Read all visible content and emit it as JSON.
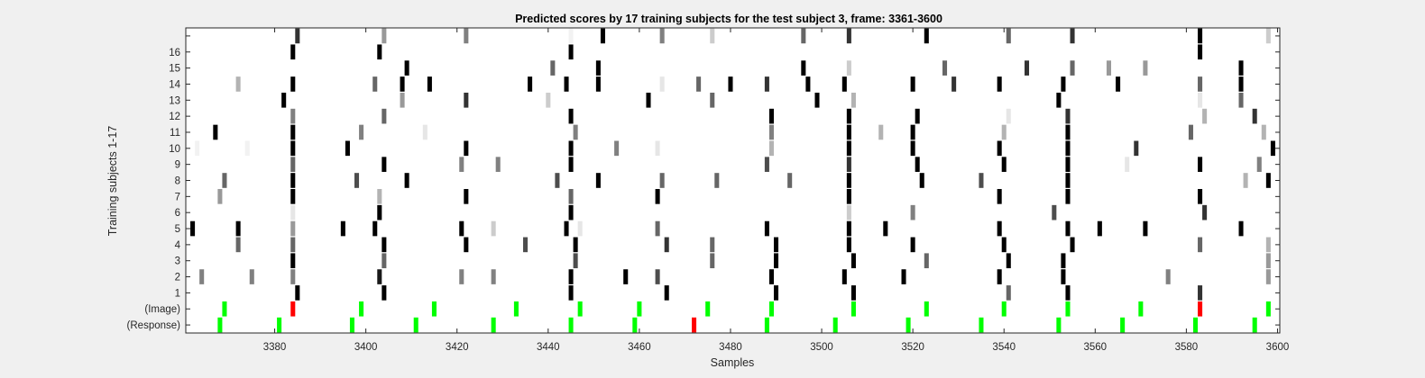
{
  "chart_data": {
    "type": "heatmap",
    "title": "Predicted scores by 17 training subjects for the test subject 3, frame: 3361-3600",
    "xlabel": "Samples",
    "ylabel": "Training subjects 1-17",
    "xlim": [
      3361,
      3600
    ],
    "x_ticks": [
      3380,
      3400,
      3420,
      3440,
      3460,
      3480,
      3500,
      3520,
      3540,
      3560,
      3580,
      3600
    ],
    "row_labels": [
      "(Response)",
      "(Image)",
      "1",
      "2",
      "3",
      "4",
      "5",
      "6",
      "7",
      "8",
      "9",
      "10",
      "11",
      "12",
      "13",
      "14",
      "15",
      "16",
      ""
    ],
    "colormap": "gray-reversed",
    "marker_colors": {
      "match": "#00ff00",
      "mismatch": "#ff0000"
    },
    "rows": [
      {
        "row": "(Response)",
        "cells": [
          [
            3368,
            "g"
          ],
          [
            3381,
            "g"
          ],
          [
            3397,
            "g"
          ],
          [
            3411,
            "g"
          ],
          [
            3428,
            "g"
          ],
          [
            3445,
            "g"
          ],
          [
            3459,
            "g"
          ],
          [
            3472,
            "r"
          ],
          [
            3488,
            "g"
          ],
          [
            3503,
            "g"
          ],
          [
            3519,
            "g"
          ],
          [
            3535,
            "g"
          ],
          [
            3552,
            "g"
          ],
          [
            3566,
            "g"
          ],
          [
            3582,
            "g"
          ],
          [
            3595,
            "g"
          ]
        ]
      },
      {
        "row": "(Image)",
        "cells": [
          [
            3369,
            "g"
          ],
          [
            3384,
            "r"
          ],
          [
            3399,
            "g"
          ],
          [
            3415,
            "g"
          ],
          [
            3433,
            "g"
          ],
          [
            3447,
            "g"
          ],
          [
            3460,
            "g"
          ],
          [
            3475,
            "g"
          ],
          [
            3489,
            "g"
          ],
          [
            3507,
            "g"
          ],
          [
            3523,
            "g"
          ],
          [
            3540,
            "g"
          ],
          [
            3554,
            "g"
          ],
          [
            3570,
            "g"
          ],
          [
            3583,
            "r"
          ],
          [
            3598,
            "g"
          ]
        ]
      },
      {
        "row": "1",
        "cells": [
          [
            3385,
            1.0
          ],
          [
            3404,
            1.0
          ],
          [
            3445,
            1.0
          ],
          [
            3466,
            1.0
          ],
          [
            3490,
            1.0
          ],
          [
            3507,
            1.0
          ],
          [
            3541,
            0.6
          ],
          [
            3554,
            1.0
          ],
          [
            3583,
            0.8
          ]
        ]
      },
      {
        "row": "2",
        "cells": [
          [
            3364,
            0.5
          ],
          [
            3375,
            0.5
          ],
          [
            3384,
            0.5
          ],
          [
            3403,
            0.9
          ],
          [
            3421,
            0.5
          ],
          [
            3428,
            0.5
          ],
          [
            3445,
            1.0
          ],
          [
            3457,
            1.0
          ],
          [
            3464,
            0.7
          ],
          [
            3489,
            1.0
          ],
          [
            3505,
            1.0
          ],
          [
            3518,
            1.0
          ],
          [
            3539,
            1.0
          ],
          [
            3553,
            1.0
          ],
          [
            3576,
            0.5
          ],
          [
            3598,
            0.4
          ]
        ]
      },
      {
        "row": "3",
        "cells": [
          [
            3384,
            1.0
          ],
          [
            3404,
            0.6
          ],
          [
            3446,
            0.7
          ],
          [
            3476,
            0.6
          ],
          [
            3490,
            1.0
          ],
          [
            3507,
            1.0
          ],
          [
            3523,
            0.6
          ],
          [
            3541,
            1.0
          ],
          [
            3553,
            1.0
          ],
          [
            3598,
            0.4
          ]
        ]
      },
      {
        "row": "4",
        "cells": [
          [
            3372,
            0.6
          ],
          [
            3384,
            0.6
          ],
          [
            3404,
            1.0
          ],
          [
            3422,
            1.0
          ],
          [
            3435,
            0.7
          ],
          [
            3446,
            1.0
          ],
          [
            3466,
            0.8
          ],
          [
            3476,
            0.6
          ],
          [
            3490,
            1.0
          ],
          [
            3506,
            1.0
          ],
          [
            3520,
            1.0
          ],
          [
            3540,
            1.0
          ],
          [
            3555,
            1.0
          ],
          [
            3583,
            0.6
          ],
          [
            3598,
            0.3
          ]
        ]
      },
      {
        "row": "5",
        "cells": [
          [
            3362,
            1.0
          ],
          [
            3372,
            1.0
          ],
          [
            3384,
            0.4
          ],
          [
            3395,
            1.0
          ],
          [
            3402,
            1.0
          ],
          [
            3421,
            1.0
          ],
          [
            3428,
            0.2
          ],
          [
            3444,
            1.0
          ],
          [
            3447,
            0.1
          ],
          [
            3464,
            0.6
          ],
          [
            3488,
            1.0
          ],
          [
            3506,
            1.0
          ],
          [
            3514,
            1.0
          ],
          [
            3539,
            1.0
          ],
          [
            3554,
            1.0
          ],
          [
            3561,
            1.0
          ],
          [
            3571,
            1.0
          ],
          [
            3592,
            1.0
          ]
        ]
      },
      {
        "row": "6",
        "cells": [
          [
            3384,
            0.1
          ],
          [
            3403,
            1.0
          ],
          [
            3445,
            1.0
          ],
          [
            3506,
            0.2
          ],
          [
            3520,
            0.5
          ],
          [
            3551,
            0.7
          ],
          [
            3584,
            0.8
          ]
        ]
      },
      {
        "row": "7",
        "cells": [
          [
            3368,
            0.4
          ],
          [
            3384,
            1.0
          ],
          [
            3403,
            0.3
          ],
          [
            3422,
            1.0
          ],
          [
            3445,
            0.6
          ],
          [
            3464,
            1.0
          ],
          [
            3506,
            1.0
          ],
          [
            3539,
            1.0
          ],
          [
            3554,
            1.0
          ],
          [
            3583,
            1.0
          ]
        ]
      },
      {
        "row": "8",
        "cells": [
          [
            3369,
            0.6
          ],
          [
            3384,
            1.0
          ],
          [
            3398,
            0.7
          ],
          [
            3409,
            1.0
          ],
          [
            3442,
            0.7
          ],
          [
            3451,
            1.0
          ],
          [
            3465,
            0.6
          ],
          [
            3477,
            0.6
          ],
          [
            3493,
            0.6
          ],
          [
            3506,
            1.0
          ],
          [
            3522,
            1.0
          ],
          [
            3535,
            0.7
          ],
          [
            3554,
            1.0
          ],
          [
            3593,
            0.3
          ],
          [
            3598,
            1.0
          ]
        ]
      },
      {
        "row": "9",
        "cells": [
          [
            3384,
            0.6
          ],
          [
            3404,
            1.0
          ],
          [
            3421,
            0.5
          ],
          [
            3429,
            0.5
          ],
          [
            3445,
            1.0
          ],
          [
            3488,
            0.7
          ],
          [
            3506,
            0.8
          ],
          [
            3521,
            1.0
          ],
          [
            3540,
            1.0
          ],
          [
            3554,
            1.0
          ],
          [
            3567,
            0.1
          ],
          [
            3583,
            1.0
          ],
          [
            3596,
            0.1
          ],
          [
            3596,
            0.5
          ]
        ]
      },
      {
        "row": "10",
        "cells": [
          [
            3363,
            0.05
          ],
          [
            3374,
            0.05
          ],
          [
            3384,
            1.0
          ],
          [
            3396,
            1.0
          ],
          [
            3422,
            1.0
          ],
          [
            3445,
            1.0
          ],
          [
            3455,
            0.5
          ],
          [
            3464,
            0.1
          ],
          [
            3489,
            0.3
          ],
          [
            3506,
            1.0
          ],
          [
            3520,
            1.0
          ],
          [
            3539,
            1.0
          ],
          [
            3554,
            1.0
          ],
          [
            3569,
            0.8
          ],
          [
            3599,
            1.0
          ]
        ]
      },
      {
        "row": "11",
        "cells": [
          [
            3367,
            1.0
          ],
          [
            3384,
            1.0
          ],
          [
            3399,
            0.5
          ],
          [
            3413,
            0.1
          ],
          [
            3446,
            0.5
          ],
          [
            3489,
            0.5
          ],
          [
            3506,
            1.0
          ],
          [
            3513,
            0.3
          ],
          [
            3520,
            1.0
          ],
          [
            3540,
            0.3
          ],
          [
            3554,
            1.0
          ],
          [
            3581,
            0.6
          ],
          [
            3597,
            0.3
          ]
        ]
      },
      {
        "row": "12",
        "cells": [
          [
            3384,
            0.5
          ],
          [
            3404,
            0.6
          ],
          [
            3445,
            1.0
          ],
          [
            3489,
            1.0
          ],
          [
            3506,
            1.0
          ],
          [
            3521,
            1.0
          ],
          [
            3541,
            0.1
          ],
          [
            3554,
            0.8
          ],
          [
            3584,
            0.3
          ],
          [
            3595,
            0.8
          ]
        ]
      },
      {
        "row": "13",
        "cells": [
          [
            3382,
            1.0
          ],
          [
            3408,
            0.4
          ],
          [
            3422,
            0.8
          ],
          [
            3440,
            0.2
          ],
          [
            3462,
            1.0
          ],
          [
            3476,
            0.6
          ],
          [
            3499,
            1.0
          ],
          [
            3507,
            0.3
          ],
          [
            3552,
            1.0
          ],
          [
            3583,
            0.1
          ],
          [
            3592,
            0.6
          ]
        ]
      },
      {
        "row": "14",
        "cells": [
          [
            3372,
            0.3
          ],
          [
            3384,
            1.0
          ],
          [
            3402,
            0.6
          ],
          [
            3408,
            1.0
          ],
          [
            3414,
            1.0
          ],
          [
            3436,
            1.0
          ],
          [
            3444,
            1.0
          ],
          [
            3451,
            1.0
          ],
          [
            3465,
            0.1
          ],
          [
            3473,
            0.6
          ],
          [
            3480,
            1.0
          ],
          [
            3488,
            0.8
          ],
          [
            3497,
            1.0
          ],
          [
            3505,
            1.0
          ],
          [
            3520,
            1.0
          ],
          [
            3529,
            0.8
          ],
          [
            3539,
            1.0
          ],
          [
            3553,
            1.0
          ],
          [
            3565,
            1.0
          ],
          [
            3583,
            0.6
          ],
          [
            3592,
            1.0
          ]
        ]
      },
      {
        "row": "15",
        "cells": [
          [
            3409,
            1.0
          ],
          [
            3441,
            0.6
          ],
          [
            3451,
            1.0
          ],
          [
            3496,
            1.0
          ],
          [
            3506,
            0.2
          ],
          [
            3527,
            0.6
          ],
          [
            3545,
            0.8
          ],
          [
            3555,
            0.6
          ],
          [
            3563,
            0.4
          ],
          [
            3571,
            0.4
          ],
          [
            3592,
            1.0
          ]
        ]
      },
      {
        "row": "16",
        "cells": [
          [
            3384,
            1.0
          ],
          [
            3403,
            1.0
          ],
          [
            3445,
            1.0
          ],
          [
            3583,
            1.0
          ]
        ]
      },
      {
        "row": "",
        "cells": [
          [
            3385,
            0.8
          ],
          [
            3404,
            0.4
          ],
          [
            3422,
            0.5
          ],
          [
            3445,
            0.05
          ],
          [
            3452,
            1.0
          ],
          [
            3465,
            0.5
          ],
          [
            3476,
            0.2
          ],
          [
            3496,
            0.6
          ],
          [
            3506,
            0.8
          ],
          [
            3523,
            1.0
          ],
          [
            3541,
            0.6
          ],
          [
            3555,
            0.8
          ],
          [
            3583,
            1.0
          ],
          [
            3598,
            0.2
          ]
        ]
      }
    ]
  }
}
